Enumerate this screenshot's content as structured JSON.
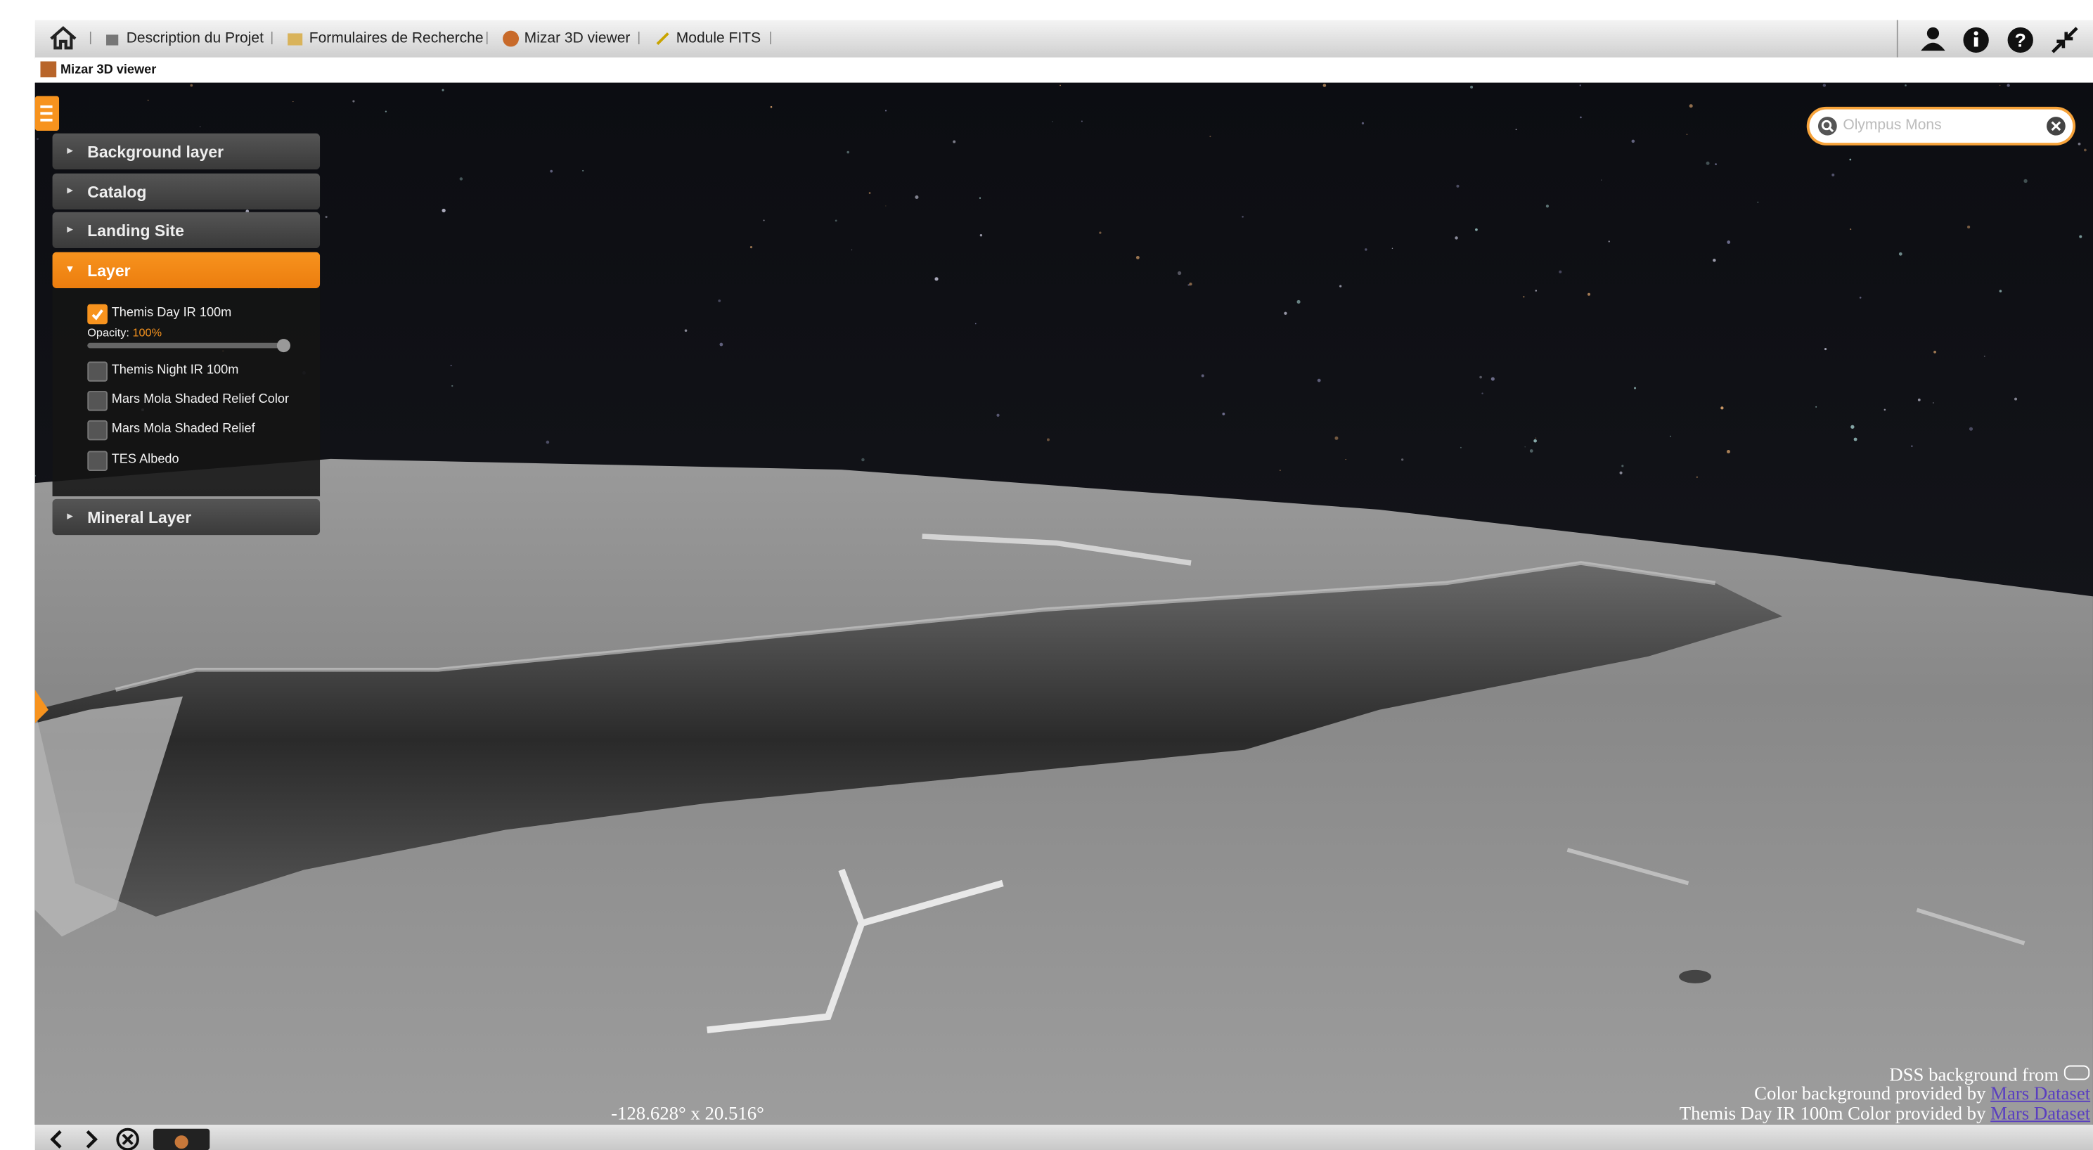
{
  "toolbar": {
    "items": [
      "Description du Projet",
      "Formulaires de Recherche",
      "Mizar 3D viewer",
      "Module FITS"
    ]
  },
  "tab": {
    "title": "Mizar 3D viewer"
  },
  "panel": {
    "sections": [
      "Background layer",
      "Catalog",
      "Landing Site",
      "Layer",
      "Mineral Layer"
    ],
    "layers": [
      "Themis Day IR 100m",
      "Themis Night IR 100m",
      "Mars Mola Shaded Relief Color",
      "Mars Mola Shaded Relief",
      "TES Albedo"
    ],
    "opacity_label": "Opacity:",
    "opacity_value": "100%"
  },
  "search": {
    "placeholder": "Olympus Mons"
  },
  "coordinates": "-128.628° x 20.516°",
  "attribution": {
    "lines": [
      "DSS background from",
      "Color background provided by",
      "Themis Day IR 100m Color provided by"
    ],
    "links": [
      "Mars Dataset",
      "Mars Dataset"
    ]
  }
}
